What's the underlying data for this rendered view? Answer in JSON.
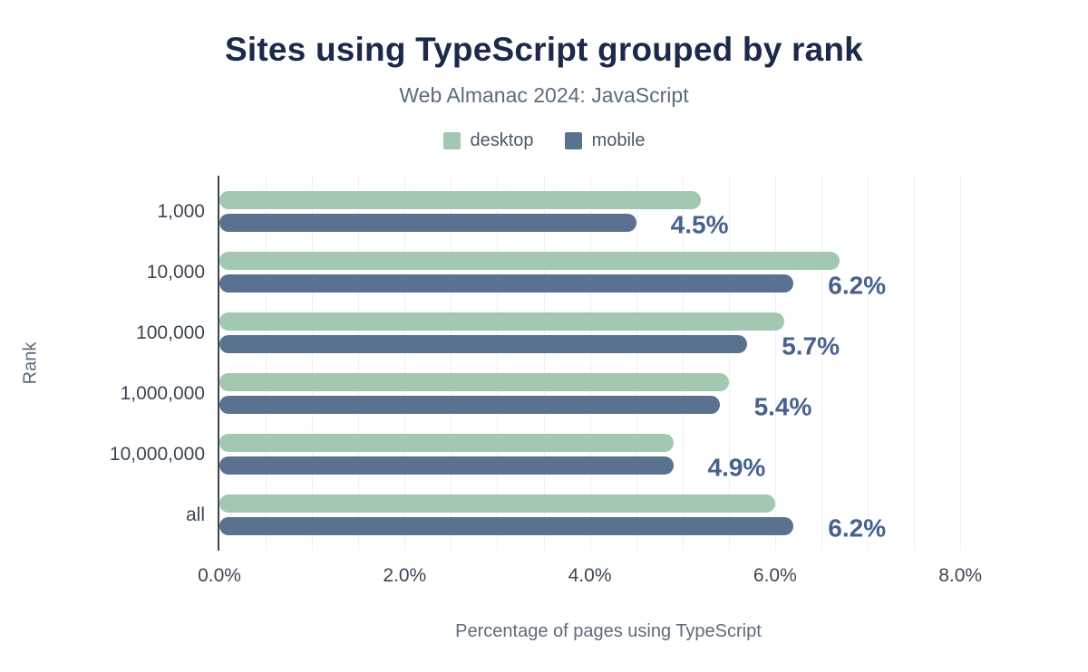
{
  "title": "Sites using TypeScript grouped by rank",
  "subtitle": "Web Almanac 2024: JavaScript",
  "legend": [
    {
      "label": "desktop",
      "color": "#a2c8b2"
    },
    {
      "label": "mobile",
      "color": "#5a7290"
    }
  ],
  "colors": {
    "title": "#1b2a4a",
    "subtitle": "#5d6b7c",
    "annotation": "#47618e",
    "axis_text": "#3d4653",
    "axis_line": "#3f444b",
    "gridline": "#eef0f2",
    "desktop": "#a2c8b2",
    "mobile": "#5a7290"
  },
  "chart_data": {
    "type": "bar",
    "orientation": "horizontal",
    "title": "Sites using TypeScript grouped by rank",
    "subtitle": "Web Almanac 2024: JavaScript",
    "xlabel": "Percentage of pages using TypeScript",
    "ylabel": "Rank",
    "categories": [
      "1,000",
      "10,000",
      "100,000",
      "1,000,000",
      "10,000,000",
      "all"
    ],
    "series": [
      {
        "name": "desktop",
        "values": [
          5.2,
          6.7,
          6.1,
          5.5,
          4.9,
          6.0
        ]
      },
      {
        "name": "mobile",
        "values": [
          4.5,
          6.2,
          5.7,
          5.4,
          4.9,
          6.2
        ]
      }
    ],
    "annotations": [
      "4.5%",
      "6.2%",
      "5.7%",
      "5.4%",
      "4.9%",
      "6.2%"
    ],
    "annotation_series": "mobile",
    "xlim": [
      0,
      8.4
    ],
    "x_ticks": [
      0,
      2,
      4,
      6,
      8
    ],
    "x_tick_labels": [
      "0.0%",
      "2.0%",
      "4.0%",
      "6.0%",
      "8.0%"
    ],
    "grid": "vertical-minor",
    "grid_step": 0.5,
    "legend_position": "top"
  }
}
